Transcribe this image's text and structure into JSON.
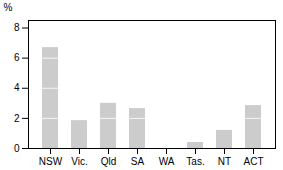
{
  "chart_data": {
    "type": "bar",
    "categories": [
      "NSW",
      "Vic.",
      "Qld",
      "SA",
      "WA",
      "Tas.",
      "NT",
      "ACT"
    ],
    "values": [
      6.7,
      1.85,
      3.0,
      2.65,
      0.0,
      0.4,
      1.2,
      2.85
    ],
    "color": "#cccccc",
    "ylabel": "%",
    "ylim": [
      0,
      8.5
    ],
    "yticks": [
      0,
      2,
      4,
      6,
      8
    ],
    "grid": false
  }
}
